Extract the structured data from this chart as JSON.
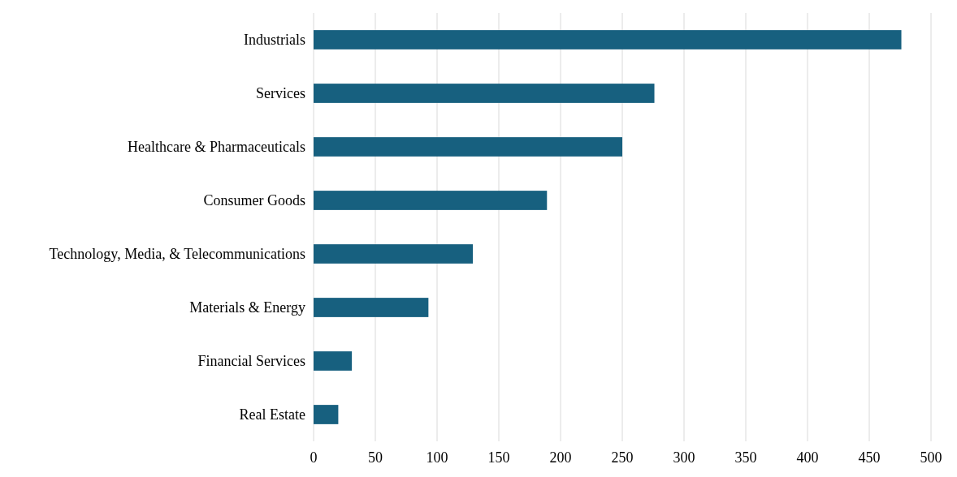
{
  "chart_data": {
    "type": "bar",
    "orientation": "horizontal",
    "categories": [
      "Industrials",
      "Services",
      "Healthcare & Pharmaceuticals",
      "Consumer Goods",
      "Technology, Media, & Telecommunications",
      "Materials & Energy",
      "Financial Services",
      "Real Estate"
    ],
    "values": [
      476,
      276,
      250,
      189,
      129,
      93,
      31,
      20
    ],
    "color": "#17607f",
    "xlim": [
      0,
      500
    ],
    "xticks": [
      0,
      50,
      100,
      150,
      200,
      250,
      300,
      350,
      400,
      450,
      500
    ],
    "grid": "x"
  }
}
